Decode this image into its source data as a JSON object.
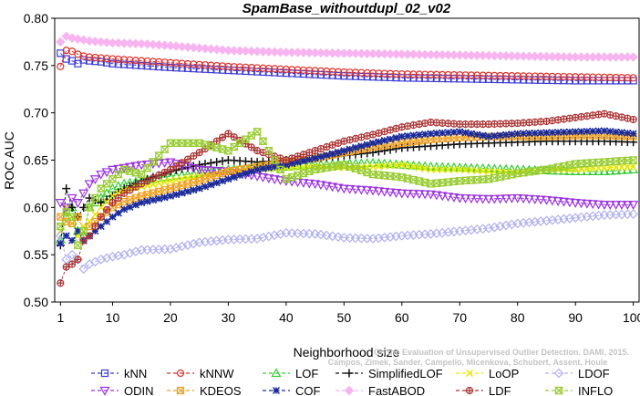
{
  "chart_data": {
    "type": "line",
    "title": "SpamBase_withoutdupl_02_v02",
    "xlabel": "Neighborhood size",
    "ylabel": "ROC AUC",
    "xlim": [
      0,
      101
    ],
    "ylim": [
      0.5,
      0.8
    ],
    "xticks": [
      1,
      10,
      20,
      30,
      40,
      50,
      60,
      70,
      80,
      90,
      100
    ],
    "yticks": [
      0.5,
      0.55,
      0.6,
      0.65,
      0.7,
      0.75,
      0.8
    ],
    "grid": false,
    "legend_position": "bottom",
    "watermark": "Campos, Zimek, Sander, Campello, Micenkova, Schubert, Assent, Houle",
    "watermark2": "On the Evaluation of Unsupervised Outlier Detection. DAMI, 2015.",
    "series": [
      {
        "name": "kNN",
        "color": "#3b3bd6",
        "marker": "square",
        "x": [
          1,
          2,
          3,
          4,
          5,
          6,
          8,
          10,
          15,
          20,
          30,
          40,
          50,
          60,
          70,
          80,
          90,
          100
        ],
        "y": [
          0.763,
          0.757,
          0.755,
          0.752,
          0.756,
          0.755,
          0.754,
          0.752,
          0.75,
          0.748,
          0.745,
          0.742,
          0.739,
          0.737,
          0.736,
          0.735,
          0.734,
          0.734
        ]
      },
      {
        "name": "kNNW",
        "color": "#e0302a",
        "marker": "circle",
        "x": [
          1,
          2,
          3,
          4,
          5,
          6,
          8,
          10,
          15,
          20,
          30,
          40,
          50,
          60,
          70,
          80,
          90,
          100
        ],
        "y": [
          0.749,
          0.766,
          0.765,
          0.762,
          0.76,
          0.759,
          0.758,
          0.757,
          0.755,
          0.753,
          0.749,
          0.746,
          0.743,
          0.741,
          0.74,
          0.739,
          0.738,
          0.737
        ]
      },
      {
        "name": "LOF",
        "color": "#33cc33",
        "marker": "triangle-up",
        "x": [
          1,
          2,
          3,
          4,
          5,
          6,
          8,
          10,
          12,
          15,
          20,
          25,
          30,
          35,
          40,
          45,
          50,
          55,
          60,
          65,
          70,
          75,
          80,
          85,
          90,
          95,
          100
        ],
        "y": [
          0.566,
          0.59,
          0.6,
          0.575,
          0.57,
          0.6,
          0.61,
          0.62,
          0.625,
          0.628,
          0.633,
          0.636,
          0.64,
          0.642,
          0.643,
          0.645,
          0.646,
          0.647,
          0.645,
          0.643,
          0.642,
          0.641,
          0.64,
          0.639,
          0.638,
          0.638,
          0.64
        ]
      },
      {
        "name": "SimplifiedLOF",
        "color": "#111111",
        "marker": "plus",
        "x": [
          1,
          2,
          3,
          4,
          5,
          6,
          8,
          10,
          12,
          15,
          20,
          25,
          30,
          35,
          40,
          45,
          50,
          55,
          60,
          65,
          70,
          75,
          80,
          85,
          90,
          95,
          100
        ],
        "y": [
          0.56,
          0.62,
          0.6,
          0.59,
          0.6,
          0.61,
          0.605,
          0.612,
          0.62,
          0.628,
          0.638,
          0.645,
          0.65,
          0.648,
          0.65,
          0.652,
          0.655,
          0.658,
          0.663,
          0.665,
          0.667,
          0.668,
          0.669,
          0.67,
          0.67,
          0.67,
          0.669
        ]
      },
      {
        "name": "LoOP",
        "color": "#e8e800",
        "marker": "x",
        "x": [
          1,
          2,
          3,
          4,
          5,
          6,
          8,
          10,
          12,
          15,
          20,
          25,
          30,
          35,
          40,
          45,
          50,
          55,
          60,
          65,
          70,
          75,
          80,
          85,
          90,
          95,
          100
        ],
        "y": [
          0.575,
          0.6,
          0.59,
          0.57,
          0.58,
          0.585,
          0.6,
          0.612,
          0.618,
          0.622,
          0.628,
          0.633,
          0.638,
          0.64,
          0.642,
          0.643,
          0.642,
          0.643,
          0.645,
          0.64,
          0.64,
          0.638,
          0.637,
          0.64,
          0.64,
          0.642,
          0.643
        ]
      },
      {
        "name": "LDOF",
        "color": "#b0b0ee",
        "marker": "diamond",
        "x": [
          1,
          2,
          3,
          4,
          5,
          6,
          8,
          10,
          12,
          15,
          20,
          25,
          30,
          35,
          40,
          45,
          50,
          55,
          60,
          65,
          70,
          75,
          80,
          85,
          90,
          95,
          100
        ],
        "y": [
          0.57,
          0.545,
          0.55,
          0.545,
          0.535,
          0.54,
          0.545,
          0.548,
          0.55,
          0.555,
          0.556,
          0.563,
          0.566,
          0.567,
          0.573,
          0.572,
          0.568,
          0.567,
          0.57,
          0.572,
          0.575,
          0.578,
          0.583,
          0.586,
          0.589,
          0.592,
          0.593
        ]
      },
      {
        "name": "ODIN",
        "color": "#9933dd",
        "marker": "triangle-down",
        "x": [
          1,
          2,
          3,
          4,
          5,
          6,
          8,
          10,
          12,
          15,
          20,
          25,
          30,
          35,
          40,
          45,
          50,
          55,
          60,
          65,
          70,
          75,
          80,
          85,
          90,
          95,
          100
        ],
        "y": [
          0.605,
          0.6,
          0.61,
          0.605,
          0.615,
          0.625,
          0.635,
          0.64,
          0.642,
          0.645,
          0.648,
          0.64,
          0.638,
          0.633,
          0.628,
          0.625,
          0.62,
          0.618,
          0.615,
          0.614,
          0.61,
          0.609,
          0.61,
          0.608,
          0.605,
          0.603,
          0.603
        ]
      },
      {
        "name": "KDEOS",
        "color": "#f0a020",
        "marker": "square-x",
        "x": [
          1,
          2,
          3,
          4,
          5,
          6,
          8,
          10,
          12,
          15,
          20,
          25,
          30,
          35,
          40,
          45,
          50,
          55,
          60,
          65,
          70,
          75,
          80,
          85,
          90,
          95,
          100
        ],
        "y": [
          0.59,
          0.585,
          0.583,
          0.59,
          0.575,
          0.58,
          0.59,
          0.6,
          0.606,
          0.612,
          0.62,
          0.628,
          0.638,
          0.643,
          0.648,
          0.652,
          0.658,
          0.664,
          0.668,
          0.672,
          0.674,
          0.675,
          0.675,
          0.675,
          0.676,
          0.676,
          0.675
        ]
      },
      {
        "name": "COF",
        "color": "#1a2a9a",
        "marker": "asterisk",
        "x": [
          1,
          2,
          3,
          4,
          5,
          6,
          8,
          10,
          12,
          15,
          20,
          25,
          30,
          35,
          40,
          45,
          50,
          55,
          60,
          65,
          70,
          75,
          80,
          85,
          90,
          95,
          100
        ],
        "y": [
          0.562,
          0.57,
          0.565,
          0.575,
          0.565,
          0.57,
          0.58,
          0.59,
          0.598,
          0.605,
          0.612,
          0.62,
          0.63,
          0.64,
          0.645,
          0.652,
          0.66,
          0.668,
          0.675,
          0.678,
          0.68,
          0.675,
          0.678,
          0.679,
          0.68,
          0.681,
          0.678
        ]
      },
      {
        "name": "FastABOD",
        "color": "#f8b4f0",
        "marker": "diamond-filled",
        "x": [
          1,
          2,
          3,
          4,
          5,
          6,
          8,
          10,
          15,
          20,
          30,
          40,
          50,
          60,
          70,
          80,
          90,
          100
        ],
        "y": [
          0.775,
          0.781,
          0.779,
          0.778,
          0.777,
          0.776,
          0.775,
          0.774,
          0.773,
          0.771,
          0.766,
          0.764,
          0.763,
          0.762,
          0.761,
          0.76,
          0.759,
          0.759
        ]
      },
      {
        "name": "LDF",
        "color": "#aa3333",
        "marker": "circle-plus",
        "x": [
          1,
          2,
          3,
          4,
          5,
          6,
          8,
          10,
          12,
          15,
          20,
          25,
          30,
          35,
          40,
          45,
          50,
          55,
          60,
          65,
          70,
          75,
          80,
          85,
          90,
          95,
          100
        ],
        "y": [
          0.52,
          0.537,
          0.54,
          0.545,
          0.565,
          0.57,
          0.59,
          0.605,
          0.615,
          0.625,
          0.64,
          0.658,
          0.678,
          0.66,
          0.65,
          0.66,
          0.67,
          0.677,
          0.685,
          0.69,
          0.688,
          0.688,
          0.689,
          0.691,
          0.695,
          0.699,
          0.693
        ]
      },
      {
        "name": "INFLO",
        "color": "#99cc33",
        "marker": "hourglass",
        "x": [
          1,
          2,
          3,
          4,
          5,
          6,
          8,
          10,
          12,
          15,
          20,
          25,
          30,
          35,
          40,
          45,
          50,
          55,
          60,
          65,
          70,
          75,
          80,
          85,
          90,
          95,
          100
        ],
        "y": [
          0.58,
          0.595,
          0.59,
          0.56,
          0.575,
          0.6,
          0.62,
          0.63,
          0.64,
          0.635,
          0.668,
          0.668,
          0.66,
          0.68,
          0.63,
          0.64,
          0.645,
          0.635,
          0.632,
          0.625,
          0.628,
          0.63,
          0.636,
          0.64,
          0.646,
          0.648,
          0.65
        ]
      }
    ]
  }
}
